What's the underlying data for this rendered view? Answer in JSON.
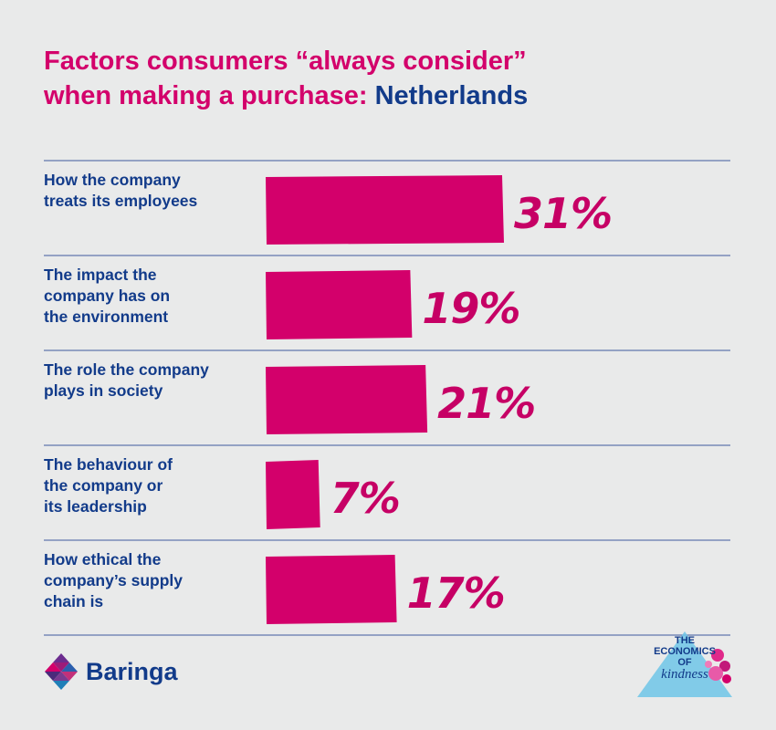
{
  "title": {
    "line1": "Factors consumers “always consider”",
    "line2": "when making a purchase: ",
    "country": "Netherlands"
  },
  "colors": {
    "bar": "#d3006b",
    "label": "#123b8a",
    "rule": "#3f5a9e",
    "background": "#e9eaea"
  },
  "chart_data": {
    "type": "bar",
    "orientation": "horizontal",
    "categories": [
      [
        "How the company",
        "treats its employees"
      ],
      [
        "The impact the",
        "company has on",
        "the environment"
      ],
      [
        "The role the company",
        "plays in society"
      ],
      [
        "The behaviour of",
        "the company or",
        "its leadership"
      ],
      [
        "How ethical the",
        "company’s supply",
        "chain is"
      ]
    ],
    "values": [
      31,
      19,
      21,
      7,
      17
    ],
    "value_labels": [
      "31%",
      "19%",
      "21%",
      "7%",
      "17%"
    ],
    "unit": "%",
    "xlim": [
      0,
      31
    ],
    "grid": false
  },
  "footer": {
    "brand": "Baringa",
    "badge": [
      "THE",
      "ECONOMICS",
      "OF",
      "kindness"
    ],
    "badge_icon": "economics-of-kindness-badge"
  }
}
